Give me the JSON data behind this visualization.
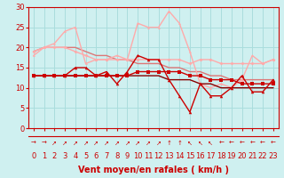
{
  "background_color": "#cff0f0",
  "grid_color": "#aadddd",
  "xlabel": "Vent moyen/en rafales ( km/h )",
  "xlabel_color": "#cc0000",
  "xlabel_fontsize": 7,
  "tick_color": "#cc0000",
  "tick_fontsize": 6,
  "xlim": [
    -0.5,
    23.5
  ],
  "ylim": [
    0,
    30
  ],
  "yticks": [
    0,
    5,
    10,
    15,
    20,
    25,
    30
  ],
  "xticks": [
    0,
    1,
    2,
    3,
    4,
    5,
    6,
    7,
    8,
    9,
    10,
    11,
    12,
    13,
    14,
    15,
    16,
    17,
    18,
    19,
    20,
    21,
    22,
    23
  ],
  "line1_x": [
    0,
    1,
    2,
    3,
    4,
    5,
    6,
    7,
    8,
    9,
    10,
    11,
    12,
    13,
    14,
    15,
    16,
    17,
    18,
    19,
    20,
    21,
    22,
    23
  ],
  "line1_y": [
    13,
    13,
    13,
    13,
    13,
    13,
    13,
    13,
    13,
    13,
    14,
    14,
    14,
    14,
    14,
    13,
    13,
    12,
    12,
    12,
    11,
    11,
    11,
    11
  ],
  "line1_color": "#cc0000",
  "line1_marker": "s",
  "line1_ms": 2.5,
  "line1_lw": 1.0,
  "line2_x": [
    0,
    1,
    2,
    3,
    4,
    5,
    6,
    7,
    8,
    9,
    10,
    11,
    12,
    13,
    14,
    15,
    16,
    17,
    18,
    19,
    20,
    21,
    22,
    23
  ],
  "line2_y": [
    13,
    13,
    13,
    13,
    15,
    15,
    13,
    14,
    11,
    14,
    18,
    17,
    17,
    12,
    8,
    4,
    11,
    8,
    8,
    10,
    13,
    9,
    9,
    12
  ],
  "line2_color": "#cc0000",
  "line2_marker": "^",
  "line2_ms": 2.5,
  "line2_lw": 1.0,
  "line3_x": [
    0,
    1,
    2,
    3,
    4,
    5,
    6,
    7,
    8,
    9,
    10,
    11,
    12,
    13,
    14,
    15,
    16,
    17,
    18,
    19,
    20,
    21,
    22,
    23
  ],
  "line3_y": [
    13,
    13,
    13,
    13,
    13,
    13,
    13,
    13,
    13,
    13,
    13,
    13,
    13,
    12,
    12,
    12,
    11,
    11,
    10,
    10,
    10,
    10,
    10,
    10
  ],
  "line3_color": "#880000",
  "line3_marker": null,
  "line3_ms": 0,
  "line3_lw": 1.0,
  "line4_x": [
    0,
    1,
    2,
    3,
    4,
    5,
    6,
    7,
    8,
    9,
    10,
    11,
    12,
    13,
    14,
    15,
    16,
    17,
    18,
    19,
    20,
    21,
    22,
    23
  ],
  "line4_y": [
    19,
    20,
    20,
    20,
    19,
    18,
    17,
    17,
    17,
    17,
    17,
    17,
    17,
    17,
    17,
    16,
    17,
    17,
    16,
    16,
    16,
    16,
    16,
    17
  ],
  "line4_color": "#ffaaaa",
  "line4_marker": "D",
  "line4_ms": 2.0,
  "line4_lw": 1.0,
  "line5_x": [
    0,
    1,
    2,
    3,
    4,
    5,
    6,
    7,
    8,
    9,
    10,
    11,
    12,
    13,
    14,
    15,
    16,
    17,
    18,
    19,
    20,
    21,
    22,
    23
  ],
  "line5_y": [
    18,
    20,
    21,
    24,
    25,
    16,
    17,
    17,
    18,
    17,
    26,
    25,
    25,
    29,
    26,
    19,
    11,
    10,
    11,
    10,
    12,
    18,
    16,
    17
  ],
  "line5_color": "#ffaaaa",
  "line5_marker": "^",
  "line5_ms": 2.0,
  "line5_lw": 1.0,
  "line6_x": [
    0,
    1,
    2,
    3,
    4,
    5,
    6,
    7,
    8,
    9,
    10,
    11,
    12,
    13,
    14,
    15,
    16,
    17,
    18,
    19,
    20,
    21,
    22,
    23
  ],
  "line6_y": [
    19,
    20,
    20,
    20,
    20,
    19,
    18,
    18,
    17,
    17,
    16,
    16,
    16,
    15,
    15,
    14,
    14,
    13,
    13,
    12,
    12,
    12,
    12,
    12
  ],
  "line6_color": "#dd7777",
  "line6_marker": null,
  "line6_ms": 0,
  "line6_lw": 1.0,
  "arrow_symbols": [
    "→",
    "→",
    "↗",
    "↗",
    "↗",
    "↗",
    "↗",
    "↗",
    "↗",
    "↗",
    "↗",
    "↗",
    "↗",
    "↑",
    "↑",
    "↖",
    "↖",
    "↖",
    "←",
    "←",
    "←",
    "←",
    "←",
    "←"
  ]
}
